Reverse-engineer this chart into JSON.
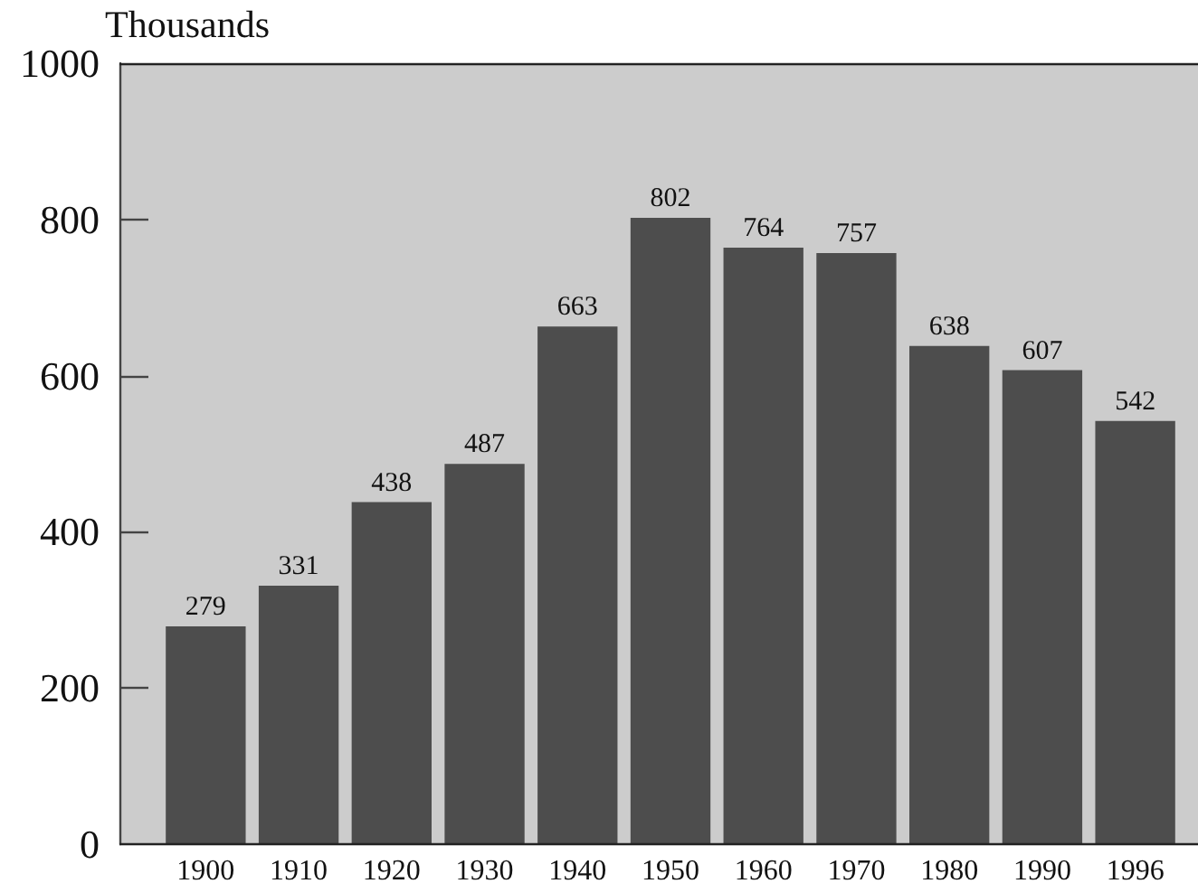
{
  "chart_data": {
    "type": "bar",
    "ylabel": "Thousands",
    "categories": [
      "1900",
      "1910",
      "1920",
      "1930",
      "1940",
      "1950",
      "1960",
      "1970",
      "1980",
      "1990",
      "1996"
    ],
    "values": [
      279,
      331,
      438,
      487,
      663,
      802,
      764,
      757,
      638,
      607,
      542
    ],
    "color": "#4d4d4d",
    "ylim": [
      0,
      1000
    ],
    "yticks": [
      0,
      200,
      400,
      600,
      800,
      1000
    ],
    "data_labels": true
  }
}
